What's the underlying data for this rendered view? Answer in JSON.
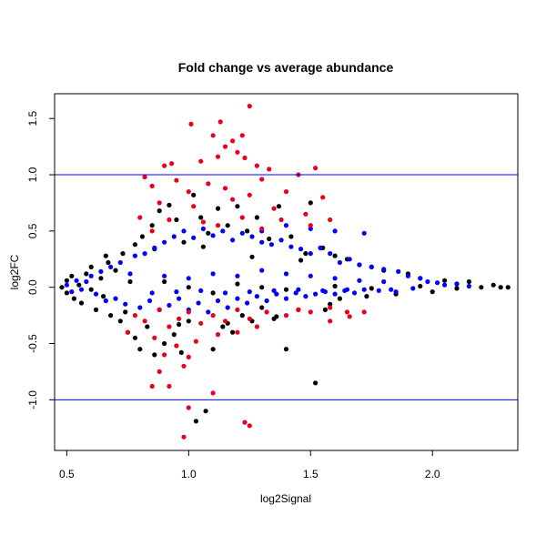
{
  "chart_data": {
    "type": "scatter",
    "title": "Fold change vs average abundance",
    "xlabel": "log2Signal",
    "ylabel": "log2FC",
    "xlim": [
      0.45,
      2.35
    ],
    "ylim": [
      -1.45,
      1.72
    ],
    "x_ticks": [
      0.5,
      1.0,
      1.5,
      2.0
    ],
    "x_tick_labels": [
      "0.5",
      "1.0",
      "1.5",
      "2.0"
    ],
    "y_ticks": [
      -1.0,
      -0.5,
      0.0,
      0.5,
      1.0,
      1.5
    ],
    "y_tick_labels": [
      "-1.0",
      "-0.5",
      "0.0",
      "0.5",
      "1.0",
      "1.5"
    ],
    "hlines": [
      1.0,
      -1.0
    ],
    "hline_color": "#0000ff",
    "grid": false,
    "legend": "none",
    "groups": [
      {
        "color": "#000000",
        "description_visible": false,
        "points": [
          [
            0.48,
            0.0
          ],
          [
            0.5,
            0.06
          ],
          [
            0.5,
            -0.05
          ],
          [
            0.52,
            0.1
          ],
          [
            0.53,
            -0.1
          ],
          [
            0.55,
            0.02
          ],
          [
            0.56,
            -0.14
          ],
          [
            0.58,
            0.12
          ],
          [
            0.6,
            -0.02
          ],
          [
            0.6,
            0.18
          ],
          [
            0.62,
            -0.2
          ],
          [
            0.64,
            0.08
          ],
          [
            0.65,
            -0.08
          ],
          [
            0.67,
            0.22
          ],
          [
            0.68,
            -0.25
          ],
          [
            0.7,
            0.15
          ],
          [
            0.72,
            -0.3
          ],
          [
            0.73,
            0.3
          ],
          [
            0.75,
            -0.4
          ],
          [
            0.76,
            0.05
          ],
          [
            0.78,
            0.38
          ],
          [
            0.78,
            -0.45
          ],
          [
            0.8,
            -0.55
          ],
          [
            0.81,
            0.45
          ],
          [
            0.83,
            -0.35
          ],
          [
            0.85,
            0.55
          ],
          [
            0.86,
            -0.6
          ],
          [
            0.88,
            0.68
          ],
          [
            0.9,
            -0.5
          ],
          [
            0.92,
            0.73
          ],
          [
            0.94,
            -0.42
          ],
          [
            0.95,
            0.6
          ],
          [
            0.97,
            -0.58
          ],
          [
            0.98,
            0.4
          ],
          [
            1.0,
            -0.3
          ],
          [
            1.02,
            0.82
          ],
          [
            1.03,
            -1.19
          ],
          [
            1.05,
            0.62
          ],
          [
            1.07,
            -1.1
          ],
          [
            1.08,
            0.48
          ],
          [
            1.1,
            -0.55
          ],
          [
            1.12,
            0.7
          ],
          [
            1.14,
            -0.35
          ],
          [
            1.16,
            0.55
          ],
          [
            1.18,
            -0.4
          ],
          [
            1.2,
            0.72
          ],
          [
            1.22,
            -0.25
          ],
          [
            1.24,
            0.5
          ],
          [
            1.26,
            -0.3
          ],
          [
            1.28,
            0.62
          ],
          [
            1.3,
            -0.18
          ],
          [
            1.33,
            0.43
          ],
          [
            1.35,
            -0.28
          ],
          [
            1.37,
            0.72
          ],
          [
            1.4,
            -0.55
          ],
          [
            1.42,
            0.45
          ],
          [
            1.45,
            -0.2
          ],
          [
            1.48,
            0.3
          ],
          [
            1.5,
            0.75
          ],
          [
            1.52,
            -0.85
          ],
          [
            1.55,
            0.35
          ],
          [
            1.58,
            -0.15
          ],
          [
            1.6,
            0.28
          ],
          [
            1.62,
            -0.1
          ],
          [
            1.65,
            0.25
          ],
          [
            1.7,
            0.2
          ],
          [
            1.73,
            -0.08
          ],
          [
            1.75,
            0.18
          ],
          [
            1.8,
            0.15
          ],
          [
            1.85,
            -0.06
          ],
          [
            1.9,
            0.12
          ],
          [
            1.95,
            0.08
          ],
          [
            2.0,
            -0.04
          ],
          [
            2.05,
            0.06
          ],
          [
            2.1,
            0.03
          ],
          [
            2.15,
            0.05
          ],
          [
            2.2,
            0.0
          ],
          [
            2.25,
            0.02
          ],
          [
            2.28,
            0.0
          ],
          [
            2.31,
            0.0
          ],
          [
            0.9,
            0.05
          ],
          [
            1.0,
            0.0
          ],
          [
            1.1,
            -0.05
          ],
          [
            1.2,
            0.03
          ],
          [
            1.3,
            0.0
          ],
          [
            1.4,
            -0.02
          ],
          [
            1.6,
            0.01
          ],
          [
            1.75,
            -0.01
          ],
          [
            1.95,
            0.01
          ],
          [
            2.1,
            -0.01
          ],
          [
            0.66,
            0.28
          ],
          [
            0.74,
            -0.22
          ],
          [
            0.86,
            0.34
          ],
          [
            0.96,
            -0.33
          ],
          [
            1.06,
            0.36
          ],
          [
            1.16,
            -0.32
          ],
          [
            1.26,
            0.27
          ],
          [
            1.36,
            -0.26
          ],
          [
            1.46,
            0.24
          ],
          [
            1.56,
            -0.2
          ]
        ]
      },
      {
        "color": "#0000ff",
        "description_visible": false,
        "points": [
          [
            0.5,
            0.02
          ],
          [
            0.52,
            -0.04
          ],
          [
            0.54,
            0.06
          ],
          [
            0.56,
            -0.02
          ],
          [
            0.58,
            0.05
          ],
          [
            0.6,
            0.1
          ],
          [
            0.62,
            -0.06
          ],
          [
            0.64,
            0.14
          ],
          [
            0.66,
            -0.12
          ],
          [
            0.68,
            0.18
          ],
          [
            0.7,
            -0.1
          ],
          [
            0.72,
            0.22
          ],
          [
            0.74,
            -0.15
          ],
          [
            0.76,
            0.12
          ],
          [
            0.78,
            0.28
          ],
          [
            0.8,
            -0.18
          ],
          [
            0.82,
            0.3
          ],
          [
            0.84,
            -0.12
          ],
          [
            0.86,
            0.35
          ],
          [
            0.88,
            -0.2
          ],
          [
            0.9,
            0.4
          ],
          [
            0.92,
            -0.16
          ],
          [
            0.94,
            0.45
          ],
          [
            0.96,
            -0.1
          ],
          [
            0.98,
            0.5
          ],
          [
            1.0,
            -0.2
          ],
          [
            1.02,
            0.44
          ],
          [
            1.04,
            -0.14
          ],
          [
            1.06,
            0.52
          ],
          [
            1.08,
            -0.22
          ],
          [
            1.1,
            0.46
          ],
          [
            1.12,
            -0.12
          ],
          [
            1.14,
            0.5
          ],
          [
            1.16,
            -0.18
          ],
          [
            1.18,
            0.42
          ],
          [
            1.2,
            -0.1
          ],
          [
            1.22,
            0.48
          ],
          [
            1.24,
            -0.14
          ],
          [
            1.26,
            0.45
          ],
          [
            1.28,
            -0.08
          ],
          [
            1.3,
            0.4
          ],
          [
            1.32,
            -0.12
          ],
          [
            1.34,
            0.38
          ],
          [
            1.36,
            -0.06
          ],
          [
            1.38,
            0.42
          ],
          [
            1.4,
            -0.1
          ],
          [
            1.42,
            0.36
          ],
          [
            1.44,
            -0.05
          ],
          [
            1.46,
            0.34
          ],
          [
            1.48,
            -0.08
          ],
          [
            1.5,
            0.3
          ],
          [
            1.52,
            -0.06
          ],
          [
            1.54,
            0.35
          ],
          [
            1.56,
            -0.04
          ],
          [
            1.58,
            0.3
          ],
          [
            1.6,
            -0.06
          ],
          [
            1.62,
            0.22
          ],
          [
            1.64,
            -0.03
          ],
          [
            1.66,
            0.25
          ],
          [
            1.68,
            -0.05
          ],
          [
            1.7,
            0.2
          ],
          [
            1.72,
            -0.02
          ],
          [
            1.75,
            0.18
          ],
          [
            1.78,
            -0.03
          ],
          [
            1.8,
            0.16
          ],
          [
            1.83,
            -0.02
          ],
          [
            1.86,
            0.14
          ],
          [
            1.9,
            0.1
          ],
          [
            1.92,
            -0.01
          ],
          [
            1.95,
            0.08
          ],
          [
            1.98,
            0.05
          ],
          [
            2.02,
            0.04
          ],
          [
            2.05,
            0.02
          ],
          [
            2.1,
            0.03
          ],
          [
            2.15,
            0.01
          ],
          [
            1.72,
            0.48
          ],
          [
            1.6,
            0.5
          ],
          [
            1.5,
            0.52
          ],
          [
            1.4,
            0.55
          ],
          [
            1.3,
            0.5
          ],
          [
            0.9,
            0.1
          ],
          [
            1.0,
            0.08
          ],
          [
            1.1,
            0.12
          ],
          [
            1.2,
            0.1
          ],
          [
            1.3,
            0.15
          ],
          [
            1.4,
            0.12
          ],
          [
            1.5,
            0.1
          ],
          [
            1.6,
            0.08
          ],
          [
            1.7,
            0.06
          ],
          [
            1.8,
            0.05
          ],
          [
            0.85,
            -0.05
          ],
          [
            0.95,
            -0.04
          ],
          [
            1.05,
            -0.03
          ],
          [
            1.15,
            -0.05
          ],
          [
            1.25,
            -0.04
          ],
          [
            1.35,
            -0.03
          ],
          [
            1.45,
            -0.02
          ],
          [
            1.55,
            -0.03
          ],
          [
            1.65,
            -0.02
          ],
          [
            1.85,
            -0.04
          ]
        ]
      },
      {
        "color": "#e8001c",
        "description_visible": false,
        "points": [
          [
            1.01,
            1.45
          ],
          [
            1.1,
            1.35
          ],
          [
            1.13,
            1.47
          ],
          [
            1.25,
            1.61
          ],
          [
            1.22,
            1.35
          ],
          [
            1.18,
            1.3
          ],
          [
            1.15,
            1.25
          ],
          [
            1.2,
            1.2
          ],
          [
            1.12,
            1.16
          ],
          [
            1.23,
            1.15
          ],
          [
            0.93,
            1.1
          ],
          [
            0.9,
            1.08
          ],
          [
            1.05,
            1.12
          ],
          [
            1.28,
            1.08
          ],
          [
            1.33,
            1.05
          ],
          [
            1.52,
            1.06
          ],
          [
            0.82,
            0.98
          ],
          [
            0.95,
            0.95
          ],
          [
            1.08,
            0.92
          ],
          [
            1.3,
            0.96
          ],
          [
            1.45,
            1.0
          ],
          [
            0.85,
            0.9
          ],
          [
            1.0,
            0.85
          ],
          [
            1.15,
            0.88
          ],
          [
            1.25,
            0.82
          ],
          [
            1.4,
            0.85
          ],
          [
            1.55,
            0.8
          ],
          [
            0.88,
            0.75
          ],
          [
            1.02,
            0.72
          ],
          [
            1.18,
            0.78
          ],
          [
            1.35,
            0.7
          ],
          [
            1.48,
            0.65
          ],
          [
            1.58,
            0.6
          ],
          [
            0.8,
            0.62
          ],
          [
            0.92,
            0.6
          ],
          [
            1.06,
            0.58
          ],
          [
            1.22,
            0.62
          ],
          [
            1.38,
            0.6
          ],
          [
            0.85,
            0.5
          ],
          [
            1.12,
            0.55
          ],
          [
            1.3,
            0.52
          ],
          [
            1.5,
            0.55
          ],
          [
            0.78,
            -0.25
          ],
          [
            0.82,
            -0.3
          ],
          [
            0.88,
            -0.2
          ],
          [
            0.92,
            -0.35
          ],
          [
            0.96,
            -0.28
          ],
          [
            1.0,
            -0.22
          ],
          [
            1.05,
            -0.32
          ],
          [
            1.1,
            -0.25
          ],
          [
            1.15,
            -0.3
          ],
          [
            1.2,
            -0.2
          ],
          [
            1.25,
            -0.28
          ],
          [
            1.32,
            -0.22
          ],
          [
            1.4,
            -0.25
          ],
          [
            1.5,
            -0.22
          ],
          [
            1.58,
            -0.18
          ],
          [
            1.65,
            -0.22
          ],
          [
            0.86,
            -0.45
          ],
          [
            0.95,
            -0.52
          ],
          [
            1.03,
            -0.48
          ],
          [
            1.12,
            -0.42
          ],
          [
            0.9,
            -0.6
          ],
          [
            1.0,
            -0.62
          ],
          [
            0.88,
            -0.75
          ],
          [
            0.98,
            -0.7
          ],
          [
            0.85,
            -0.88
          ],
          [
            0.92,
            -0.88
          ],
          [
            1.1,
            -0.94
          ],
          [
            1.0,
            -1.07
          ],
          [
            0.98,
            -1.33
          ],
          [
            1.23,
            -1.2
          ],
          [
            1.25,
            -1.23
          ],
          [
            0.75,
            -0.4
          ],
          [
            1.28,
            -0.35
          ],
          [
            1.2,
            -0.4
          ],
          [
            1.45,
            -0.2
          ],
          [
            1.72,
            -0.22
          ],
          [
            1.66,
            -0.26
          ],
          [
            1.58,
            -0.3
          ]
        ]
      }
    ]
  }
}
